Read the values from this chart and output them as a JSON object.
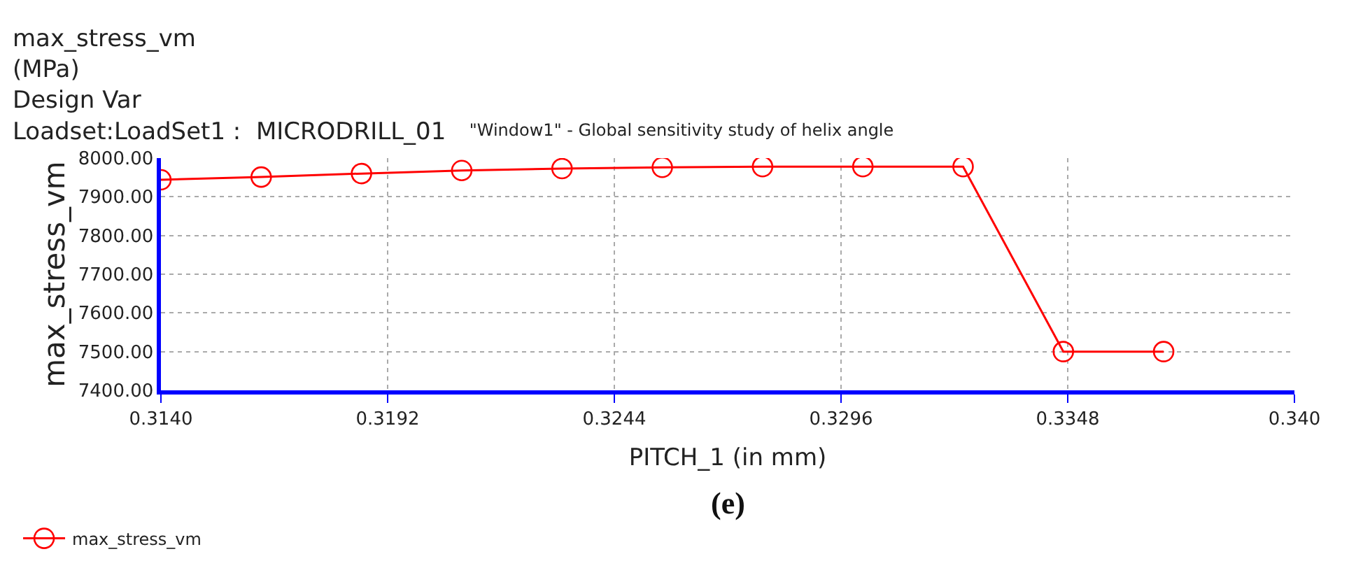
{
  "chart_data": {
    "type": "line",
    "title": "\"Window1\" - Global sensitivity study of helix angle",
    "xlabel": "PITCH_1 (in mm)",
    "ylabel": "max_stress_vm",
    "annotations": [
      "max_stress_vm\n(MPa)\nDesign Var\nLoadset:LoadSet1 :  MICRODRILL_01",
      "(e)"
    ],
    "x": [
      0.314,
      0.3163,
      0.3186,
      0.3209,
      0.3232,
      0.3255,
      0.3278,
      0.3301,
      0.3324,
      0.3347,
      0.337
    ],
    "series": [
      {
        "name": "max_stress_vm",
        "color": "#ff0000",
        "values": [
          7944,
          7951,
          7960,
          7968,
          7973,
          7976,
          7978,
          7978,
          7978,
          7500,
          7500
        ]
      }
    ],
    "xlim": [
      0.314,
      0.34
    ],
    "xticks": [
      {
        "value": 0.314,
        "label": "0.3140"
      },
      {
        "value": 0.3192,
        "label": "0.3192"
      },
      {
        "value": 0.3244,
        "label": "0.3244"
      },
      {
        "value": 0.3296,
        "label": "0.3296"
      },
      {
        "value": 0.3348,
        "label": "0.3348"
      },
      {
        "value": 0.34,
        "label": "0.340"
      }
    ],
    "ylim": [
      7400,
      8000
    ],
    "yticks": [
      {
        "value": 7400,
        "label": "7400.00"
      },
      {
        "value": 7500,
        "label": "7500.00"
      },
      {
        "value": 7600,
        "label": "7600.00"
      },
      {
        "value": 7700,
        "label": "7700.00"
      },
      {
        "value": 7800,
        "label": "7800.00"
      },
      {
        "value": 7900,
        "label": "7900.00"
      },
      {
        "value": 8000,
        "label": "8000.00"
      }
    ],
    "grid": true,
    "legend": "bottom left",
    "marker": "circle",
    "line_style": "solid"
  }
}
